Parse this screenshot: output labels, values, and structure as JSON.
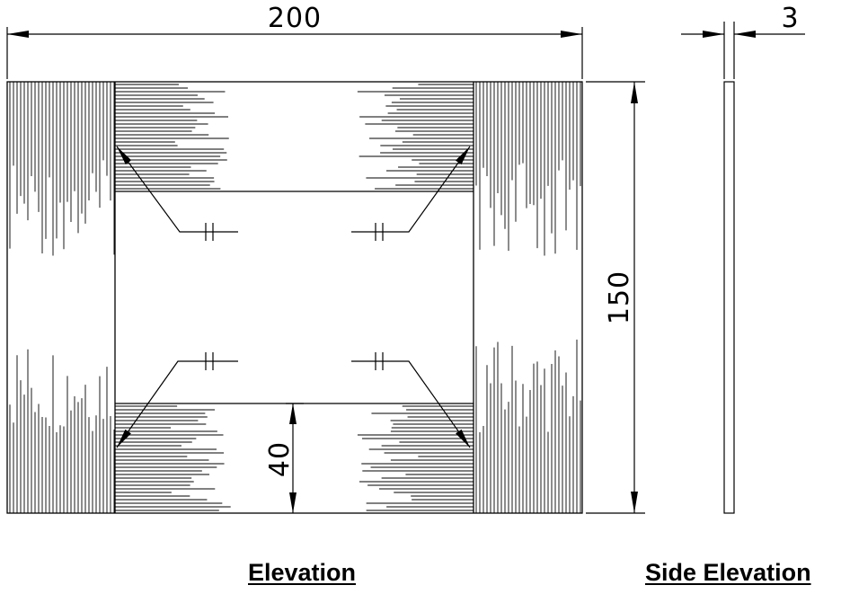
{
  "dimensions": {
    "width": "200",
    "height": "150",
    "thickness": "3",
    "panel_height": "40"
  },
  "captions": {
    "elevation": "Elevation",
    "side_elevation": "Side Elevation"
  }
}
